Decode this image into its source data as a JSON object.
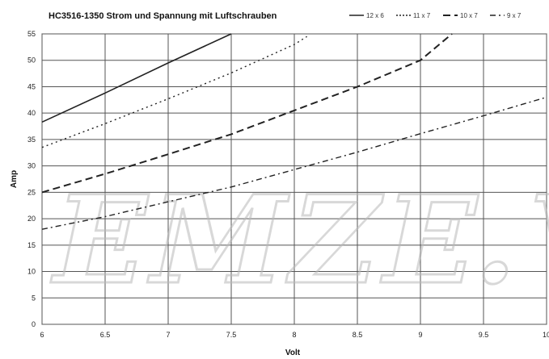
{
  "chart_data": {
    "type": "line",
    "title": "HC3516-1350   Strom und Spannung  mit Luftschrauben",
    "xlabel": "Volt",
    "ylabel": "Amp",
    "xlim": [
      6,
      10
    ],
    "ylim": [
      0,
      55
    ],
    "x_ticks": [
      "6",
      "6.5",
      "7",
      "7.5",
      "8",
      "8.5",
      "9",
      "9.5",
      "10"
    ],
    "y_ticks": [
      "0",
      "5",
      "10",
      "15",
      "20",
      "25",
      "30",
      "35",
      "40",
      "45",
      "50",
      "55"
    ],
    "grid": true,
    "legend_position": "top-right",
    "watermark": "EMZE.VZ",
    "series": [
      {
        "name": "12 x 6",
        "style": "solid",
        "x": [
          6,
          6.5,
          7,
          7.5
        ],
        "values": [
          38.3,
          43.8,
          49.5,
          55.2
        ]
      },
      {
        "name": "11 x 7",
        "style": "dotted",
        "x": [
          6,
          6.5,
          7,
          7.5,
          8,
          8.1
        ],
        "values": [
          33.5,
          38,
          42.7,
          47.6,
          53,
          54.5
        ]
      },
      {
        "name": "10 x 7",
        "style": "dashed",
        "x": [
          6,
          6.5,
          7,
          7.5,
          8,
          8.5,
          9,
          9.25
        ],
        "values": [
          25,
          28.5,
          32.2,
          36,
          40.5,
          45,
          50,
          55
        ]
      },
      {
        "name": "9 x 7",
        "style": "dashdot",
        "x": [
          6,
          6.5,
          7,
          7.5,
          8,
          8.5,
          9,
          9.5,
          10
        ],
        "values": [
          18,
          20.4,
          23.2,
          26,
          29.3,
          32.6,
          36.1,
          39.5,
          43
        ]
      }
    ],
    "colors": {
      "line": "#222222",
      "grid": "#555555",
      "watermark": "#b9b9b9"
    }
  }
}
